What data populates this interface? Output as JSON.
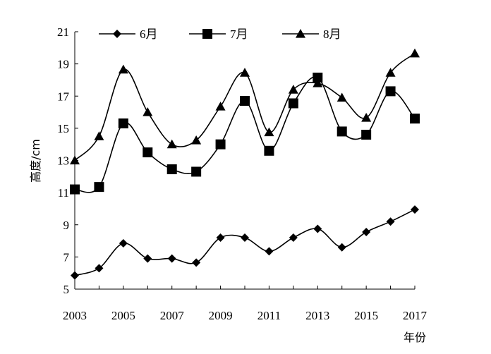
{
  "chart_data": {
    "type": "line",
    "title": "",
    "xlabel": "年份",
    "ylabel": "高度/cm",
    "x": [
      2003,
      2004,
      2005,
      2006,
      2007,
      2008,
      2009,
      2010,
      2011,
      2012,
      2013,
      2014,
      2015,
      2016,
      2017
    ],
    "x_tick_labels": [
      "2003",
      "2005",
      "2007",
      "2009",
      "2011",
      "2013",
      "2015",
      "2017"
    ],
    "x_ticks": [
      2003,
      2005,
      2007,
      2009,
      2011,
      2013,
      2015,
      2017
    ],
    "xlim": [
      2003,
      2017
    ],
    "ylim": [
      5,
      21
    ],
    "y_ticks": [
      5,
      7,
      9,
      11,
      13,
      15,
      17,
      19,
      21
    ],
    "y_tick_labels": [
      "5",
      "7",
      "9",
      "11",
      "13",
      "15",
      "17",
      "19",
      "21"
    ],
    "grid": false,
    "legend": "top",
    "series": [
      {
        "name": "6月",
        "marker": "diamond",
        "values": [
          5.85,
          6.3,
          7.85,
          6.9,
          6.9,
          6.65,
          8.2,
          8.2,
          7.35,
          8.2,
          8.75,
          7.6,
          8.55,
          9.2,
          9.95
        ]
      },
      {
        "name": "7月",
        "marker": "square",
        "values": [
          11.2,
          11.35,
          15.3,
          13.5,
          12.45,
          12.3,
          14.0,
          16.7,
          13.6,
          16.55,
          18.15,
          14.8,
          14.6,
          17.3,
          15.6
        ]
      },
      {
        "name": "8月",
        "marker": "triangle",
        "values": [
          13.0,
          14.5,
          18.65,
          16.0,
          14.0,
          14.25,
          16.35,
          18.45,
          14.75,
          17.4,
          17.8,
          16.9,
          15.65,
          18.45,
          19.65
        ]
      }
    ]
  }
}
